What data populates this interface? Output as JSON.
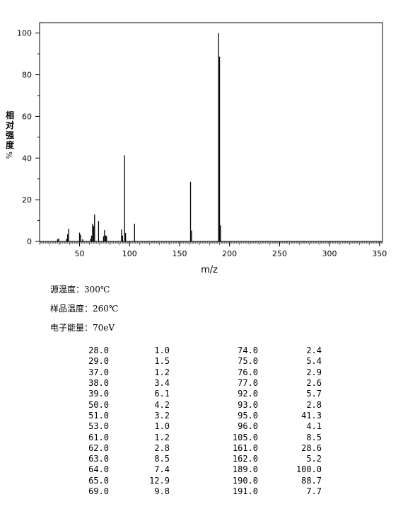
{
  "chart_data": {
    "type": "bar",
    "xlabel": "m/z",
    "ylabel": "相对强度",
    "ylabel_unit": "%",
    "xlim": [
      10,
      353
    ],
    "ylim": [
      0,
      105
    ],
    "xticks": [
      50,
      100,
      150,
      200,
      250,
      300,
      350
    ],
    "yticks": [
      0,
      20,
      40,
      60,
      80,
      100
    ],
    "grid": false,
    "peaks": [
      {
        "mz": 28,
        "intensity": 1.0
      },
      {
        "mz": 29,
        "intensity": 1.5
      },
      {
        "mz": 37,
        "intensity": 1.2
      },
      {
        "mz": 38,
        "intensity": 3.4
      },
      {
        "mz": 39,
        "intensity": 6.1
      },
      {
        "mz": 50,
        "intensity": 4.2
      },
      {
        "mz": 51,
        "intensity": 3.2
      },
      {
        "mz": 53,
        "intensity": 1.0
      },
      {
        "mz": 61,
        "intensity": 1.2
      },
      {
        "mz": 62,
        "intensity": 2.8
      },
      {
        "mz": 63,
        "intensity": 8.5
      },
      {
        "mz": 64,
        "intensity": 7.4
      },
      {
        "mz": 65,
        "intensity": 12.9
      },
      {
        "mz": 69,
        "intensity": 9.8
      },
      {
        "mz": 74,
        "intensity": 2.4
      },
      {
        "mz": 75,
        "intensity": 5.4
      },
      {
        "mz": 76,
        "intensity": 2.9
      },
      {
        "mz": 77,
        "intensity": 2.6
      },
      {
        "mz": 92,
        "intensity": 5.7
      },
      {
        "mz": 93,
        "intensity": 2.8
      },
      {
        "mz": 95,
        "intensity": 41.3
      },
      {
        "mz": 96,
        "intensity": 4.1
      },
      {
        "mz": 105,
        "intensity": 8.5
      },
      {
        "mz": 161,
        "intensity": 28.6
      },
      {
        "mz": 162,
        "intensity": 5.2
      },
      {
        "mz": 189,
        "intensity": 100.0
      },
      {
        "mz": 190,
        "intensity": 88.7
      },
      {
        "mz": 191,
        "intensity": 7.7
      }
    ]
  },
  "conditions": {
    "source_temp": "源温度：300℃",
    "sample_temp": "样品温度：260℃",
    "electron_energy": "电子能量：70eV"
  },
  "table_rows": [
    [
      "28.0",
      "1.0",
      "74.0",
      "2.4"
    ],
    [
      "29.0",
      "1.5",
      "75.0",
      "5.4"
    ],
    [
      "37.0",
      "1.2",
      "76.0",
      "2.9"
    ],
    [
      "38.0",
      "3.4",
      "77.0",
      "2.6"
    ],
    [
      "39.0",
      "6.1",
      "92.0",
      "5.7"
    ],
    [
      "50.0",
      "4.2",
      "93.0",
      "2.8"
    ],
    [
      "51.0",
      "3.2",
      "95.0",
      "41.3"
    ],
    [
      "53.0",
      "1.0",
      "96.0",
      "4.1"
    ],
    [
      "61.0",
      "1.2",
      "105.0",
      "8.5"
    ],
    [
      "62.0",
      "2.8",
      "161.0",
      "28.6"
    ],
    [
      "63.0",
      "8.5",
      "162.0",
      "5.2"
    ],
    [
      "64.0",
      "7.4",
      "189.0",
      "100.0"
    ],
    [
      "65.0",
      "12.9",
      "190.0",
      "88.7"
    ],
    [
      "69.0",
      "9.8",
      "191.0",
      "7.7"
    ]
  ]
}
